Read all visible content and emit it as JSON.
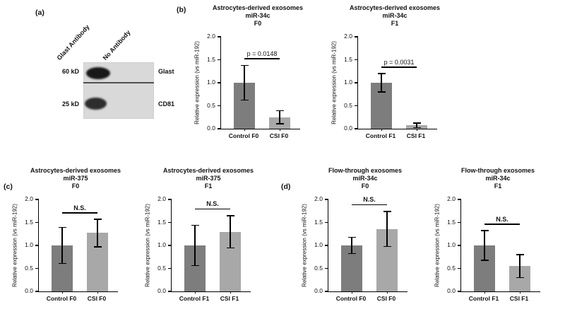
{
  "panels": {
    "a": {
      "label": "(a)",
      "lanes": [
        "Glast Antibody",
        "No Antibody"
      ],
      "markers": [
        "60 kD",
        "25 kD"
      ],
      "bands": [
        "Glast",
        "CD81"
      ]
    },
    "b": {
      "label": "(b)"
    },
    "c": {
      "label": "(c)"
    },
    "d": {
      "label": "(d)"
    }
  },
  "chart_data": [
    {
      "type": "bar",
      "panel": "b",
      "title_lines": [
        "Astrocytes-derived exosomes",
        "miR-34c",
        "F0"
      ],
      "ylabel": "Relative expression (vs miR-192)",
      "ylim": [
        0,
        2
      ],
      "yticks": [
        0,
        0.5,
        1,
        1.5,
        2
      ],
      "categories": [
        "Control F0",
        "CSI F0"
      ],
      "values": [
        1.0,
        0.25
      ],
      "errors": [
        0.38,
        0.14
      ],
      "bar_colors": [
        "#7d7d7d",
        "#a8a8a8"
      ],
      "significance": "p = 0.0148",
      "grid": false,
      "legend": false
    },
    {
      "type": "bar",
      "panel": "b",
      "title_lines": [
        "Astrocytes-derived exosomes",
        "miR-34c",
        "F1"
      ],
      "ylabel": "Relative expression (vs miR-192)",
      "ylim": [
        0,
        2
      ],
      "yticks": [
        0,
        0.5,
        1,
        1.5,
        2
      ],
      "categories": [
        "Control F1",
        "CSI F1"
      ],
      "values": [
        1.0,
        0.07
      ],
      "errors": [
        0.2,
        0.05
      ],
      "bar_colors": [
        "#7d7d7d",
        "#a8a8a8"
      ],
      "significance": "p = 0.0031",
      "grid": false,
      "legend": false
    },
    {
      "type": "bar",
      "panel": "c",
      "title_lines": [
        "Astrocytes-derived exosomes",
        "miR-375",
        "F0"
      ],
      "ylabel": "Relative expression (vs miR-192)",
      "ylim": [
        0,
        2
      ],
      "yticks": [
        0,
        0.5,
        1,
        1.5,
        2
      ],
      "categories": [
        "Control F0",
        "CSI F0"
      ],
      "values": [
        1.0,
        1.27
      ],
      "errors": [
        0.39,
        0.3
      ],
      "bar_colors": [
        "#7d7d7d",
        "#a8a8a8"
      ],
      "significance": "N.S.",
      "grid": false,
      "legend": false
    },
    {
      "type": "bar",
      "panel": "c",
      "title_lines": [
        "Astrocytes-derived exosomes",
        "miR-375",
        "F1"
      ],
      "ylabel": "Relative expression (vs miR-192)",
      "ylim": [
        0,
        2
      ],
      "yticks": [
        0,
        0.5,
        1,
        1.5,
        2
      ],
      "categories": [
        "Control F1",
        "CSI F1"
      ],
      "values": [
        1.0,
        1.3
      ],
      "errors": [
        0.44,
        0.35
      ],
      "bar_colors": [
        "#7d7d7d",
        "#a8a8a8"
      ],
      "significance": "N.S.",
      "grid": false,
      "legend": false
    },
    {
      "type": "bar",
      "panel": "d",
      "title_lines": [
        "Flow-through exosomes",
        "miR-34c",
        "F0"
      ],
      "ylabel": "Relative expression (vs miR-192)",
      "ylim": [
        0,
        2
      ],
      "yticks": [
        0,
        0.5,
        1,
        1.5,
        2
      ],
      "categories": [
        "Control F0",
        "CSI F0"
      ],
      "values": [
        1.0,
        1.36
      ],
      "errors": [
        0.18,
        0.38
      ],
      "bar_colors": [
        "#7d7d7d",
        "#a8a8a8"
      ],
      "significance": "N.S.",
      "grid": false,
      "legend": false
    },
    {
      "type": "bar",
      "panel": "d",
      "title_lines": [
        "Flow-through exosomes",
        "miR-34c",
        "F1"
      ],
      "ylabel": "Relative expression (vs miR-192)",
      "ylim": [
        0,
        2
      ],
      "yticks": [
        0,
        0.5,
        1,
        1.5,
        2
      ],
      "categories": [
        "Control F1",
        "CSI F1"
      ],
      "values": [
        1.0,
        0.55
      ],
      "errors": [
        0.32,
        0.25
      ],
      "bar_colors": [
        "#7d7d7d",
        "#a8a8a8"
      ],
      "significance": "N.S.",
      "grid": false,
      "legend": false
    }
  ]
}
